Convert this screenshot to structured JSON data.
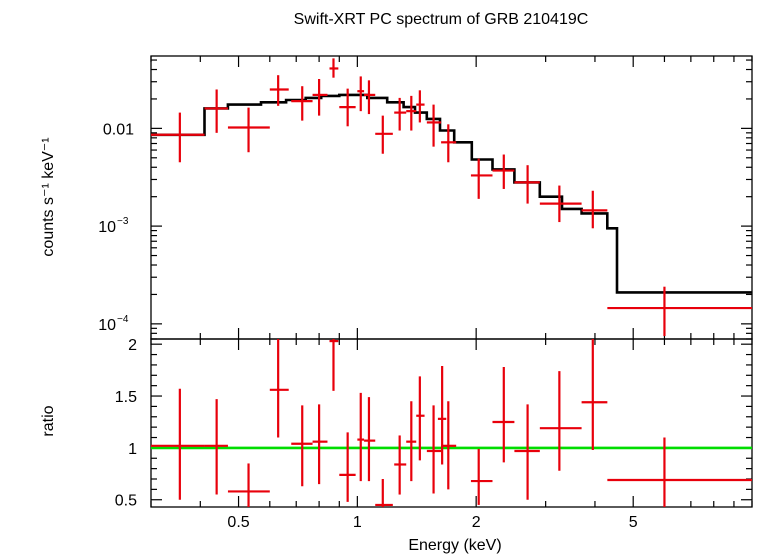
{
  "chart_data": [
    {
      "type": "line",
      "panel": "spectrum",
      "title": "Swift-XRT PC spectrum of GRB 210419C",
      "ylabel": "counts s⁻¹ keV⁻¹",
      "x_scale": "log",
      "y_scale": "log",
      "xlim": [
        0.3,
        10
      ],
      "ylim": [
        7e-05,
        0.055
      ],
      "y_ticks": [
        {
          "value": 0.01,
          "label": "0.01",
          "kind": "plain"
        },
        {
          "value": 0.001,
          "label": "10",
          "exp": "−3",
          "kind": "pow"
        },
        {
          "value": 0.0001,
          "label": "10",
          "exp": "−4",
          "kind": "pow"
        }
      ],
      "model_color": "#000000",
      "data_color": "#e8000b",
      "model_steps": [
        {
          "x0": 0.3,
          "x1": 0.41,
          "y": 0.0086
        },
        {
          "x0": 0.41,
          "x1": 0.47,
          "y": 0.016
        },
        {
          "x0": 0.47,
          "x1": 0.57,
          "y": 0.0175
        },
        {
          "x0": 0.57,
          "x1": 0.66,
          "y": 0.0185
        },
        {
          "x0": 0.66,
          "x1": 0.74,
          "y": 0.0195
        },
        {
          "x0": 0.74,
          "x1": 0.81,
          "y": 0.0205
        },
        {
          "x0": 0.81,
          "x1": 0.9,
          "y": 0.0215
        },
        {
          "x0": 0.9,
          "x1": 1.06,
          "y": 0.022
        },
        {
          "x0": 1.06,
          "x1": 1.19,
          "y": 0.0205
        },
        {
          "x0": 1.19,
          "x1": 1.31,
          "y": 0.0185
        },
        {
          "x0": 1.31,
          "x1": 1.4,
          "y": 0.0165
        },
        {
          "x0": 1.4,
          "x1": 1.5,
          "y": 0.0145
        },
        {
          "x0": 1.5,
          "x1": 1.62,
          "y": 0.0125
        },
        {
          "x0": 1.62,
          "x1": 1.76,
          "y": 0.0095
        },
        {
          "x0": 1.76,
          "x1": 1.95,
          "y": 0.0072
        },
        {
          "x0": 1.95,
          "x1": 2.2,
          "y": 0.0048
        },
        {
          "x0": 2.2,
          "x1": 2.5,
          "y": 0.0038
        },
        {
          "x0": 2.5,
          "x1": 2.9,
          "y": 0.0028
        },
        {
          "x0": 2.9,
          "x1": 3.3,
          "y": 0.002
        },
        {
          "x0": 3.3,
          "x1": 3.7,
          "y": 0.0015
        },
        {
          "x0": 3.7,
          "x1": 4.3,
          "y": 0.00135
        },
        {
          "x0": 4.3,
          "x1": 4.55,
          "y": 0.00095
        },
        {
          "x0": 4.55,
          "x1": 10,
          "y": 0.00021
        }
      ],
      "points": [
        {
          "x": 0.355,
          "xlo": 0.3,
          "xhi": 0.41,
          "y": 0.0086,
          "ylo": 0.0045,
          "yhi": 0.0145
        },
        {
          "x": 0.44,
          "xlo": 0.41,
          "xhi": 0.47,
          "y": 0.016,
          "ylo": 0.009,
          "yhi": 0.025
        },
        {
          "x": 0.53,
          "xlo": 0.47,
          "xhi": 0.6,
          "y": 0.0102,
          "ylo": 0.0057,
          "yhi": 0.0163
        },
        {
          "x": 0.63,
          "xlo": 0.6,
          "xhi": 0.67,
          "y": 0.025,
          "ylo": 0.017,
          "yhi": 0.035
        },
        {
          "x": 0.725,
          "xlo": 0.68,
          "xhi": 0.77,
          "y": 0.019,
          "ylo": 0.012,
          "yhi": 0.027
        },
        {
          "x": 0.8,
          "xlo": 0.77,
          "xhi": 0.84,
          "y": 0.022,
          "ylo": 0.0135,
          "yhi": 0.032
        },
        {
          "x": 0.87,
          "xlo": 0.85,
          "xhi": 0.895,
          "y": 0.041,
          "ylo": 0.033,
          "yhi": 0.052
        },
        {
          "x": 0.945,
          "xlo": 0.9,
          "xhi": 0.99,
          "y": 0.0165,
          "ylo": 0.0105,
          "yhi": 0.0255
        },
        {
          "x": 1.02,
          "xlo": 1.0,
          "xhi": 1.04,
          "y": 0.024,
          "ylo": 0.015,
          "yhi": 0.034
        },
        {
          "x": 1.07,
          "xlo": 1.04,
          "xhi": 1.11,
          "y": 0.022,
          "ylo": 0.014,
          "yhi": 0.031
        },
        {
          "x": 1.16,
          "xlo": 1.11,
          "xhi": 1.23,
          "y": 0.0088,
          "ylo": 0.0055,
          "yhi": 0.0135
        },
        {
          "x": 1.28,
          "xlo": 1.24,
          "xhi": 1.33,
          "y": 0.0145,
          "ylo": 0.0095,
          "yhi": 0.0205
        },
        {
          "x": 1.37,
          "xlo": 1.33,
          "xhi": 1.41,
          "y": 0.015,
          "ylo": 0.0095,
          "yhi": 0.0215
        },
        {
          "x": 1.44,
          "xlo": 1.41,
          "xhi": 1.48,
          "y": 0.0175,
          "ylo": 0.0115,
          "yhi": 0.0245
        },
        {
          "x": 1.56,
          "xlo": 1.5,
          "xhi": 1.63,
          "y": 0.0115,
          "ylo": 0.0065,
          "yhi": 0.0175
        },
        {
          "x": 1.7,
          "xlo": 1.63,
          "xhi": 1.78,
          "y": 0.0072,
          "ylo": 0.0045,
          "yhi": 0.011
        },
        {
          "x": 2.03,
          "xlo": 1.94,
          "xhi": 2.2,
          "y": 0.0033,
          "ylo": 0.0019,
          "yhi": 0.0049
        },
        {
          "x": 2.35,
          "xlo": 2.2,
          "xhi": 2.5,
          "y": 0.0037,
          "ylo": 0.0024,
          "yhi": 0.0054
        },
        {
          "x": 2.7,
          "xlo": 2.5,
          "xhi": 2.9,
          "y": 0.0028,
          "ylo": 0.0017,
          "yhi": 0.0042
        },
        {
          "x": 3.25,
          "xlo": 2.9,
          "xhi": 3.7,
          "y": 0.0017,
          "ylo": 0.0011,
          "yhi": 0.0026
        },
        {
          "x": 3.95,
          "xlo": 3.7,
          "xhi": 4.3,
          "y": 0.00145,
          "ylo": 0.00095,
          "yhi": 0.0023
        },
        {
          "x": 6.0,
          "xlo": 4.3,
          "xhi": 10,
          "y": 0.000145,
          "ylo": 7.5e-05,
          "yhi": 0.00024
        }
      ]
    },
    {
      "type": "scatter",
      "panel": "ratio",
      "ylabel": "ratio",
      "xlabel": "Energy (keV)",
      "x_scale": "log",
      "y_scale": "linear",
      "xlim": [
        0.3,
        10
      ],
      "ylim": [
        0.43,
        2.05
      ],
      "y_ticks": [
        {
          "value": 0.5,
          "label": "0.5"
        },
        {
          "value": 1,
          "label": "1"
        },
        {
          "value": 1.5,
          "label": "1.5"
        },
        {
          "value": 2,
          "label": "2"
        }
      ],
      "x_ticks": [
        {
          "value": 0.5,
          "label": "0.5"
        },
        {
          "value": 1,
          "label": "1"
        },
        {
          "value": 2,
          "label": "2"
        },
        {
          "value": 5,
          "label": "5"
        }
      ],
      "reference_line": {
        "y": 1,
        "color": "#00dd00"
      },
      "data_color": "#e8000b",
      "points": [
        {
          "x": 0.355,
          "xlo": 0.3,
          "xhi": 0.41,
          "y": 1.02,
          "ylo": 0.5,
          "yhi": 1.57
        },
        {
          "x": 0.44,
          "xlo": 0.41,
          "xhi": 0.47,
          "y": 1.02,
          "ylo": 0.55,
          "yhi": 1.47
        },
        {
          "x": 0.53,
          "xlo": 0.47,
          "xhi": 0.6,
          "y": 0.58,
          "ylo": 0.43,
          "yhi": 0.85
        },
        {
          "x": 0.63,
          "xlo": 0.6,
          "xhi": 0.67,
          "y": 1.56,
          "ylo": 1.1,
          "yhi": 2.05
        },
        {
          "x": 0.725,
          "xlo": 0.68,
          "xhi": 0.77,
          "y": 1.04,
          "ylo": 0.63,
          "yhi": 1.41
        },
        {
          "x": 0.8,
          "xlo": 0.77,
          "xhi": 0.84,
          "y": 1.06,
          "ylo": 0.65,
          "yhi": 1.42
        },
        {
          "x": 0.87,
          "xlo": 0.85,
          "xhi": 0.895,
          "y": 2.03,
          "ylo": 1.55,
          "yhi": 2.05
        },
        {
          "x": 0.945,
          "xlo": 0.9,
          "xhi": 0.99,
          "y": 0.74,
          "ylo": 0.48,
          "yhi": 1.15
        },
        {
          "x": 1.02,
          "xlo": 1.0,
          "xhi": 1.04,
          "y": 1.08,
          "ylo": 0.68,
          "yhi": 1.53
        },
        {
          "x": 1.07,
          "xlo": 1.04,
          "xhi": 1.11,
          "y": 1.07,
          "ylo": 0.68,
          "yhi": 1.49
        },
        {
          "x": 1.16,
          "xlo": 1.11,
          "xhi": 1.23,
          "y": 0.45,
          "ylo": 0.43,
          "yhi": 0.7
        },
        {
          "x": 1.28,
          "xlo": 1.24,
          "xhi": 1.33,
          "y": 0.84,
          "ylo": 0.55,
          "yhi": 1.12
        },
        {
          "x": 1.37,
          "xlo": 1.33,
          "xhi": 1.41,
          "y": 1.06,
          "ylo": 0.68,
          "yhi": 1.45
        },
        {
          "x": 1.44,
          "xlo": 1.41,
          "xhi": 1.48,
          "y": 1.31,
          "ylo": 0.88,
          "yhi": 1.69
        },
        {
          "x": 1.56,
          "xlo": 1.5,
          "xhi": 1.63,
          "y": 0.97,
          "ylo": 0.56,
          "yhi": 1.41
        },
        {
          "x": 1.64,
          "xlo": 1.6,
          "xhi": 1.68,
          "y": 1.28,
          "ylo": 0.84,
          "yhi": 1.79
        },
        {
          "x": 1.7,
          "xlo": 1.63,
          "xhi": 1.78,
          "y": 1.02,
          "ylo": 0.6,
          "yhi": 1.45
        },
        {
          "x": 2.03,
          "xlo": 1.94,
          "xhi": 2.2,
          "y": 0.68,
          "ylo": 0.45,
          "yhi": 0.99
        },
        {
          "x": 2.35,
          "xlo": 2.2,
          "xhi": 2.5,
          "y": 1.25,
          "ylo": 0.86,
          "yhi": 1.78
        },
        {
          "x": 2.7,
          "xlo": 2.5,
          "xhi": 2.9,
          "y": 0.97,
          "ylo": 0.5,
          "yhi": 1.42
        },
        {
          "x": 3.25,
          "xlo": 2.9,
          "xhi": 3.7,
          "y": 1.19,
          "ylo": 0.78,
          "yhi": 1.74
        },
        {
          "x": 3.95,
          "xlo": 3.7,
          "xhi": 4.3,
          "y": 1.44,
          "ylo": 0.98,
          "yhi": 2.05
        },
        {
          "x": 6.0,
          "xlo": 4.3,
          "xhi": 10,
          "y": 0.69,
          "ylo": 0.43,
          "yhi": 1.1
        }
      ]
    }
  ]
}
